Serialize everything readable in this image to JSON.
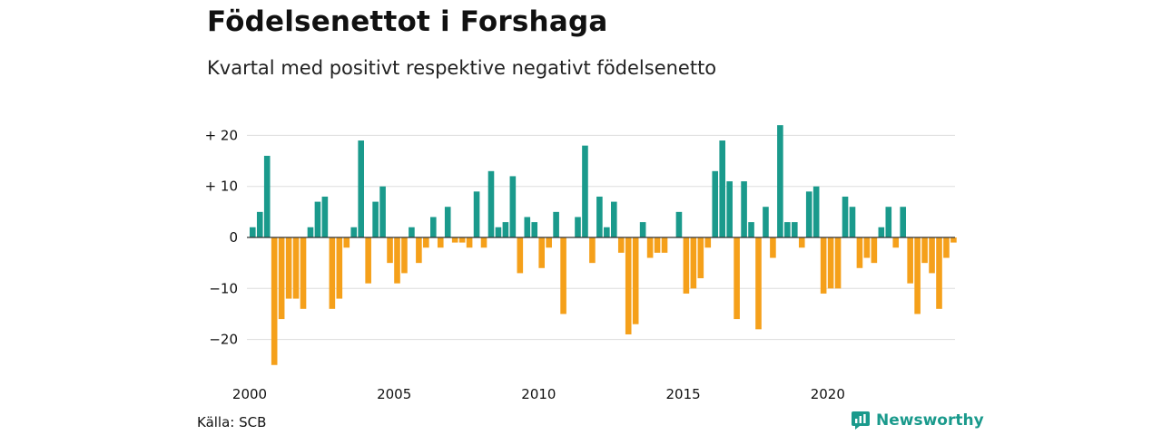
{
  "title": "Födelsenettot i Forshaga",
  "subtitle": "Kvartal med positivt respektive negativt födelsenetto",
  "source": "Källa: SCB",
  "brand": "Newsworthy",
  "colors": {
    "positive": "#1a9a8c",
    "negative": "#f5a01a",
    "grid": "#dddddd",
    "zero": "#333333",
    "brand": "#1a9a8c"
  },
  "chart_data": {
    "type": "bar",
    "title": "Födelsenettot i Forshaga",
    "subtitle": "Kvartal med positivt respektive negativt födelsenetto",
    "xlabel": "",
    "ylabel": "",
    "ylim": [
      -28,
      24
    ],
    "yticks": [
      {
        "value": 20,
        "label": "+ 20"
      },
      {
        "value": 10,
        "label": "+ 10"
      },
      {
        "value": 0,
        "label": "0"
      },
      {
        "value": -10,
        "label": "−10"
      },
      {
        "value": -20,
        "label": "−20"
      }
    ],
    "xticks": [
      {
        "value": 2000,
        "label": "2000"
      },
      {
        "value": 2005,
        "label": "2005"
      },
      {
        "value": 2010,
        "label": "2010"
      },
      {
        "value": 2015,
        "label": "2015"
      },
      {
        "value": 2020,
        "label": "2020"
      }
    ],
    "grid": true,
    "start_year": 2000,
    "values": [
      2,
      5,
      16,
      -25,
      -16,
      -12,
      -12,
      -14,
      2,
      7,
      8,
      -14,
      -12,
      -2,
      2,
      19,
      -9,
      7,
      10,
      -5,
      -9,
      -7,
      2,
      -5,
      -2,
      4,
      -2,
      6,
      -1,
      -1,
      -2,
      9,
      -2,
      13,
      2,
      3,
      12,
      -7,
      4,
      3,
      -6,
      -2,
      5,
      -15,
      0,
      4,
      18,
      -5,
      8,
      2,
      7,
      -3,
      -19,
      -17,
      3,
      -4,
      -3,
      -3,
      0,
      5,
      -11,
      -10,
      -8,
      -2,
      13,
      19,
      11,
      -16,
      11,
      3,
      -18,
      6,
      -4,
      22,
      3,
      3,
      -2,
      9,
      10,
      -11,
      -10,
      -10,
      8,
      6,
      -6,
      -4,
      -5,
      2,
      6,
      -2,
      6,
      -9,
      -15,
      -5,
      -7,
      -14,
      -4,
      -1
    ]
  }
}
